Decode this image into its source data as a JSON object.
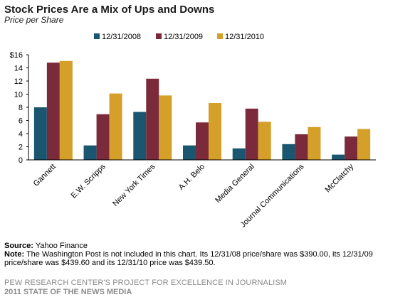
{
  "header": {
    "title": "Stock Prices Are a Mix of Ups and Downs",
    "subtitle": "Price per Share"
  },
  "chart_data": {
    "type": "bar",
    "title": "Stock Prices Are a Mix of Ups and Downs",
    "subtitle": "Price per Share",
    "xlabel": "",
    "ylabel": "",
    "ylim": [
      0,
      16
    ],
    "y_ticks": [
      "$16",
      "14",
      "12",
      "10",
      "8",
      "6",
      "4",
      "2",
      "0"
    ],
    "grid": false,
    "legend_position": "top",
    "categories": [
      "Gannett",
      "E.W. Scripps",
      "New York Times",
      "A.H. Belo",
      "Media General",
      "Journal Communications",
      "McClatchy"
    ],
    "series": [
      {
        "name": "12/31/2008",
        "color": "#1b5670",
        "values": [
          8.0,
          2.2,
          7.3,
          2.2,
          1.75,
          2.4,
          0.8
        ]
      },
      {
        "name": "12/31/2009",
        "color": "#7b2a3b",
        "values": [
          14.8,
          6.95,
          12.35,
          5.7,
          7.8,
          3.9,
          3.55
        ]
      },
      {
        "name": "12/31/2010",
        "color": "#d4a029",
        "values": [
          15.05,
          10.1,
          9.8,
          8.65,
          5.8,
          5.0,
          4.7
        ]
      }
    ]
  },
  "notes": {
    "source_label": "Source:",
    "source_text": " Yahoo Finance",
    "note_label": "Note:",
    "note_text": " The Washington Post is not included in this chart. Its 12/31/08 price/share was $390.00, its 12/31/09 price/share was $439.60 and its 12/31/10 price was $439.50."
  },
  "footer": {
    "line1": "PEW RESEARCH CENTER'S PROJECT FOR EXCELLENCE IN JOURNALISM",
    "line2": "2011 STATE OF THE NEWS MEDIA"
  }
}
